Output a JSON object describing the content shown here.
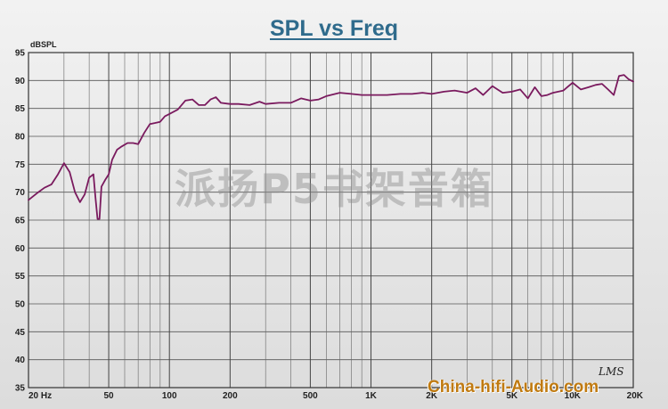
{
  "page": {
    "background": "#e6e6e6",
    "accent": "#2f6b8c"
  },
  "watermark": "派扬P5书架音箱",
  "brand_mark": "LMS",
  "site_watermark": "China-hifi-Audio.com",
  "chart_data": {
    "type": "line",
    "title": "SPL vs Freq",
    "xlabel": "",
    "ylabel": "dBSPL",
    "x_scale": "log",
    "xlim": [
      20,
      20000
    ],
    "ylim": [
      35,
      95
    ],
    "grid": true,
    "y_ticks": [
      35,
      40,
      45,
      50,
      55,
      60,
      65,
      70,
      75,
      80,
      85,
      90,
      95
    ],
    "x_tick_labels": [
      {
        "value": 20,
        "label": "20 Hz"
      },
      {
        "value": 50,
        "label": "50"
      },
      {
        "value": 100,
        "label": "100"
      },
      {
        "value": 200,
        "label": "200"
      },
      {
        "value": 500,
        "label": "500"
      },
      {
        "value": 1000,
        "label": "1K"
      },
      {
        "value": 2000,
        "label": "2K"
      },
      {
        "value": 5000,
        "label": "5K"
      },
      {
        "value": 10000,
        "label": "10K"
      },
      {
        "value": 20000,
        "label": "20K"
      }
    ],
    "series": [
      {
        "color": "#7a1a5e",
        "x": [
          20,
          22,
          24,
          26,
          28,
          30,
          32,
          34,
          36,
          38,
          40,
          42,
          43,
          44,
          45,
          46,
          48,
          50,
          52,
          55,
          58,
          62,
          66,
          70,
          75,
          80,
          85,
          90,
          95,
          100,
          110,
          120,
          130,
          140,
          150,
          160,
          170,
          180,
          200,
          220,
          250,
          280,
          300,
          350,
          400,
          450,
          500,
          550,
          600,
          700,
          800,
          900,
          1000,
          1200,
          1400,
          1600,
          1800,
          2000,
          2300,
          2600,
          3000,
          3300,
          3600,
          4000,
          4500,
          5000,
          5500,
          6000,
          6500,
          7000,
          7500,
          8000,
          9000,
          10000,
          11000,
          12000,
          13000,
          14000,
          15000,
          16000,
          17000,
          18000,
          19000,
          20000
        ],
        "y": [
          68.6,
          69.8,
          70.8,
          71.4,
          73.2,
          75.2,
          73.6,
          70.0,
          68.2,
          69.6,
          72.6,
          73.2,
          69.0,
          65.2,
          65.2,
          71.0,
          72.2,
          73.2,
          75.8,
          77.6,
          78.2,
          78.8,
          78.8,
          78.6,
          80.6,
          82.2,
          82.4,
          82.6,
          83.6,
          84.0,
          84.8,
          86.4,
          86.6,
          85.6,
          85.6,
          86.6,
          87.0,
          86.0,
          85.8,
          85.8,
          85.6,
          86.2,
          85.8,
          86.0,
          86.0,
          86.8,
          86.4,
          86.6,
          87.2,
          87.8,
          87.6,
          87.4,
          87.4,
          87.4,
          87.6,
          87.6,
          87.8,
          87.6,
          88.0,
          88.2,
          87.8,
          88.6,
          87.4,
          89.0,
          87.8,
          88.0,
          88.4,
          86.8,
          88.8,
          87.2,
          87.4,
          87.8,
          88.2,
          89.6,
          88.4,
          88.8,
          89.2,
          89.4,
          88.4,
          87.4,
          90.8,
          91.0,
          90.2,
          89.8
        ]
      }
    ]
  }
}
